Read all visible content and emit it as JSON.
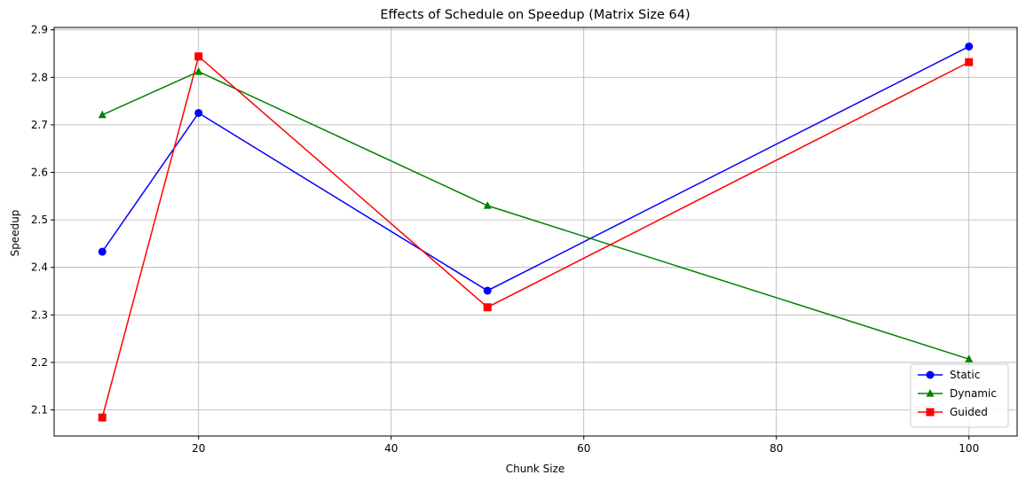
{
  "chart_data": {
    "type": "line",
    "title": "Effects of Schedule on Speedup (Matrix Size 64)",
    "xlabel": "Chunk Size",
    "ylabel": "Speedup",
    "x": [
      10,
      20,
      50,
      100
    ],
    "xlim": [
      5,
      105
    ],
    "ylim": [
      2.045,
      2.905
    ],
    "xticks": [
      20,
      40,
      60,
      80,
      100
    ],
    "yticks": [
      2.1,
      2.2,
      2.3,
      2.4,
      2.5,
      2.6,
      2.7,
      2.8,
      2.9
    ],
    "grid": true,
    "legend_position": "lower-right",
    "series": [
      {
        "name": "Static",
        "color": "#0000ff",
        "marker": "circle",
        "values": [
          2.433,
          2.725,
          2.351,
          2.865
        ]
      },
      {
        "name": "Dynamic",
        "color": "#008000",
        "marker": "triangle",
        "values": [
          2.721,
          2.812,
          2.53,
          2.207
        ]
      },
      {
        "name": "Guided",
        "color": "#ff0000",
        "marker": "square",
        "values": [
          2.084,
          2.844,
          2.316,
          2.832
        ]
      }
    ]
  }
}
